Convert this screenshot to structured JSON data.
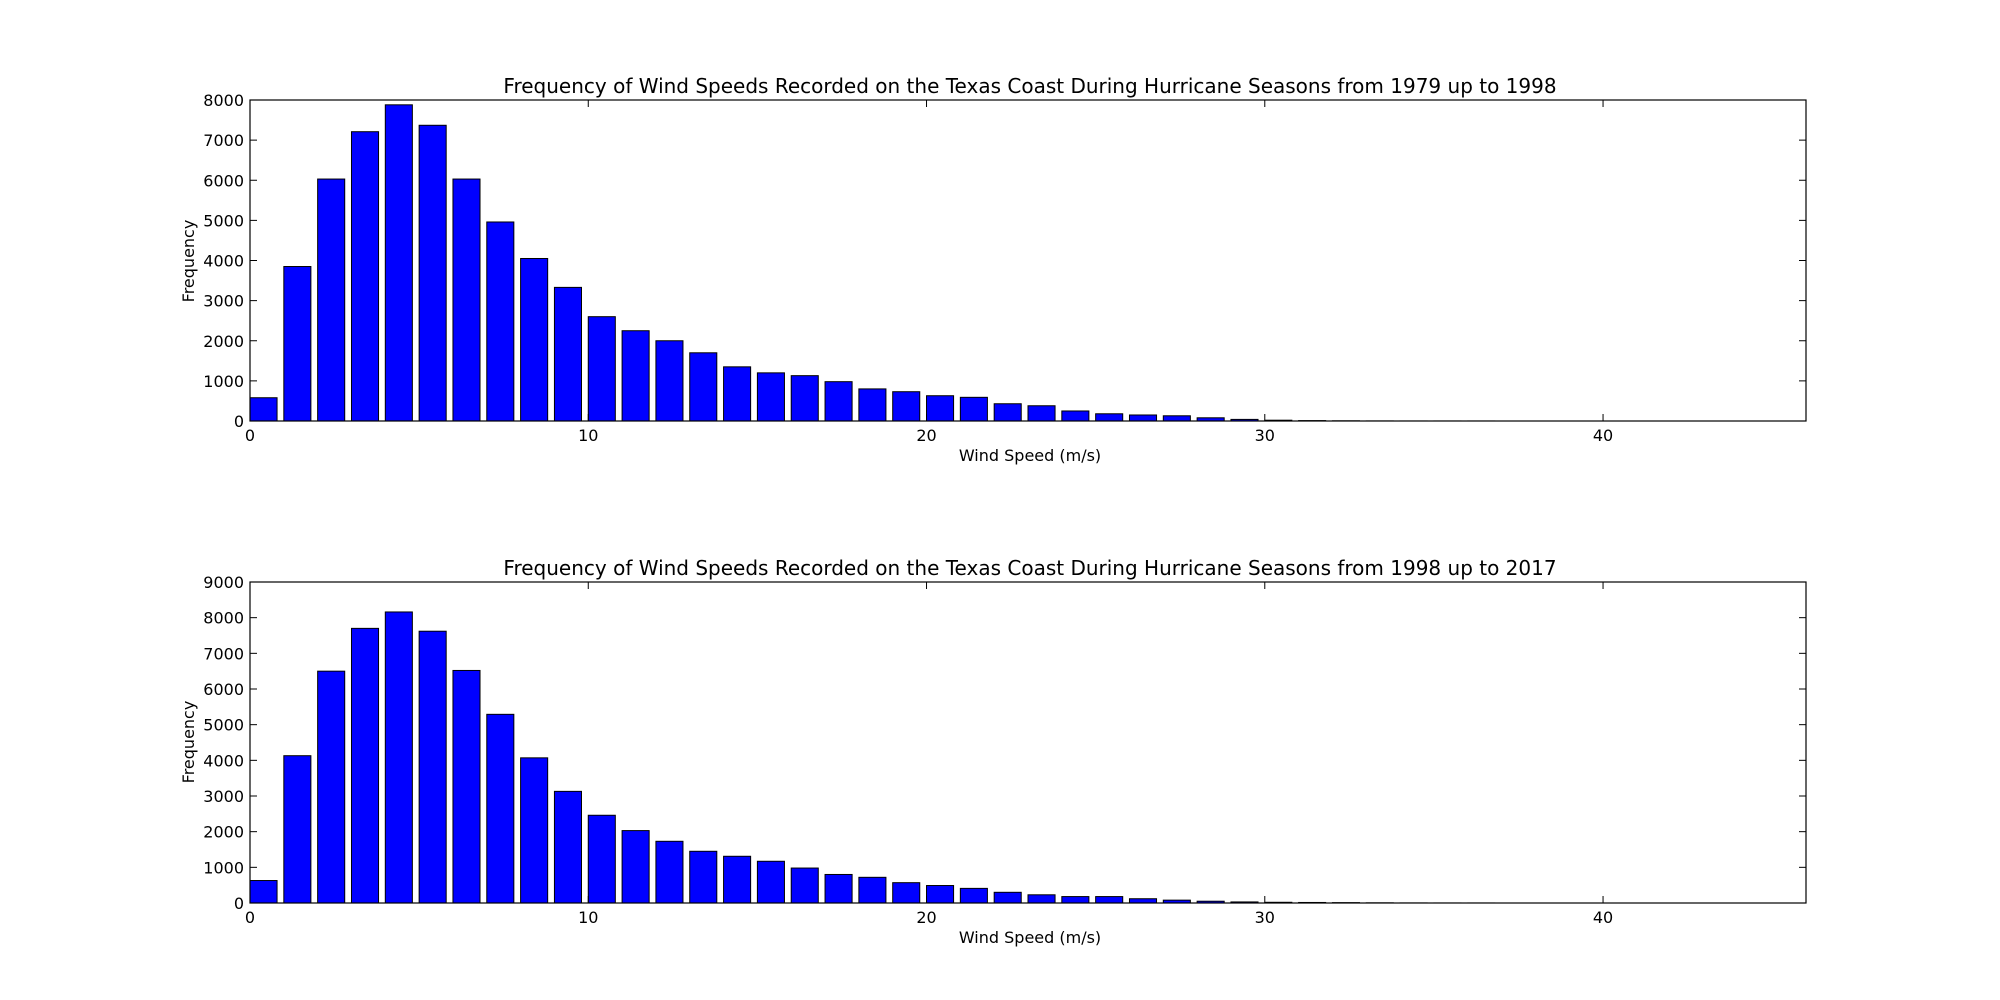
{
  "colors": {
    "bar_fill": "#0000ff",
    "bar_edge": "#000000",
    "background": "#ffffff"
  },
  "chart_data": [
    {
      "type": "bar",
      "title": "Frequency of Wind Speeds Recorded on the Texas Coast During Hurricane Seasons from 1979 up to 1998",
      "xlabel": "Wind Speed (m/s)",
      "ylabel": "Frequency",
      "xlim": [
        0,
        46
      ],
      "ylim": [
        0,
        8000
      ],
      "xticks": [
        0,
        10,
        20,
        30,
        40
      ],
      "yticks": [
        0,
        1000,
        2000,
        3000,
        4000,
        5000,
        6000,
        7000,
        8000
      ],
      "bar_width": 0.8,
      "x": [
        0,
        1,
        2,
        3,
        4,
        5,
        6,
        7,
        8,
        9,
        10,
        11,
        12,
        13,
        14,
        15,
        16,
        17,
        18,
        19,
        20,
        21,
        22,
        23,
        24,
        25,
        26,
        27,
        28,
        29,
        30,
        31,
        32,
        33,
        34,
        35,
        36,
        37,
        38,
        39,
        40,
        41,
        42,
        43,
        44
      ],
      "values": [
        580,
        3850,
        6030,
        7210,
        7880,
        7370,
        6030,
        4960,
        4050,
        3330,
        2600,
        2250,
        2000,
        1700,
        1350,
        1200,
        1130,
        980,
        800,
        730,
        630,
        590,
        430,
        380,
        250,
        180,
        150,
        130,
        80,
        40,
        20,
        10,
        5,
        2,
        1,
        1,
        1,
        0,
        0,
        0,
        0,
        0,
        0,
        0,
        0
      ],
      "grid": false
    },
    {
      "type": "bar",
      "title": "Frequency of Wind Speeds Recorded on the Texas Coast During Hurricane Seasons from 1998 up to 2017",
      "xlabel": "Wind Speed (m/s)",
      "ylabel": "Frequency",
      "xlim": [
        0,
        46
      ],
      "ylim": [
        0,
        9000
      ],
      "xticks": [
        0,
        10,
        20,
        30,
        40
      ],
      "yticks": [
        0,
        1000,
        2000,
        3000,
        4000,
        5000,
        6000,
        7000,
        8000,
        9000
      ],
      "bar_width": 0.8,
      "x": [
        0,
        1,
        2,
        3,
        4,
        5,
        6,
        7,
        8,
        9,
        10,
        11,
        12,
        13,
        14,
        15,
        16,
        17,
        18,
        19,
        20,
        21,
        22,
        23,
        24,
        25,
        26,
        27,
        28,
        29,
        30,
        31,
        32,
        33,
        34,
        35,
        36,
        37,
        38,
        39,
        40,
        41,
        42,
        43,
        44
      ],
      "values": [
        630,
        4130,
        6500,
        7700,
        8160,
        7620,
        6520,
        5290,
        4070,
        3130,
        2460,
        2030,
        1730,
        1450,
        1310,
        1170,
        980,
        800,
        720,
        570,
        490,
        410,
        300,
        230,
        180,
        180,
        120,
        80,
        50,
        30,
        20,
        15,
        10,
        5,
        2,
        1,
        1,
        0,
        0,
        0,
        0,
        0,
        0,
        0,
        0
      ],
      "grid": false
    }
  ]
}
